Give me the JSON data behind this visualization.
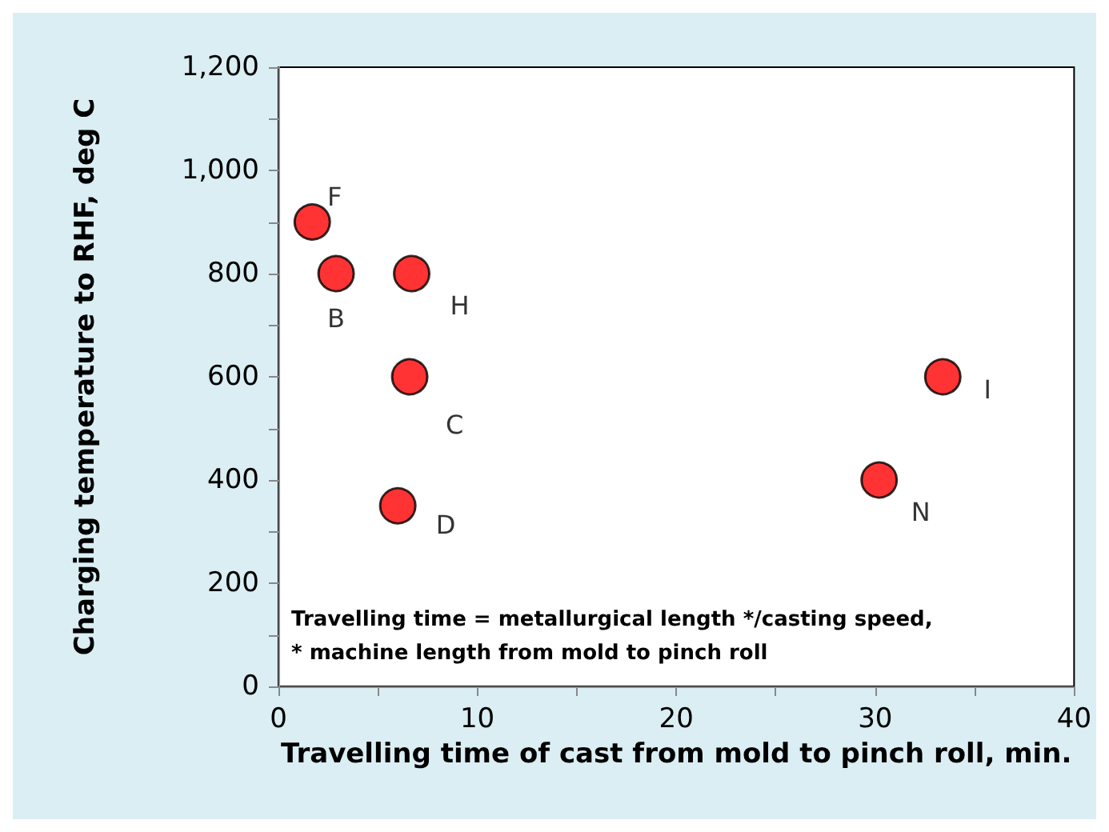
{
  "chart_data": {
    "type": "scatter",
    "xlabel": "Travelling time of cast from mold to pinch roll, min.",
    "ylabel": "Charging temperature to RHF, deg C",
    "x": [
      1.7,
      2.9,
      6.7,
      6.6,
      6.0,
      30.2,
      33.4
    ],
    "values": [
      900,
      800,
      800,
      600,
      350,
      400,
      600
    ],
    "color": "#ff0000",
    "marker": "circle",
    "xlim": [
      0,
      40
    ],
    "xticks": [
      0,
      {
        "value": 5,
        "label": null
      },
      10,
      {
        "value": 15,
        "label": null
      },
      20,
      {
        "value": 25,
        "label": null
      },
      30,
      {
        "value": 35,
        "label": null
      },
      40
    ],
    "ylim": [
      0,
      1200
    ],
    "yticks": [
      0,
      {
        "value": 100,
        "label": null
      },
      200,
      {
        "value": 300,
        "label": null
      },
      400,
      {
        "value": 500,
        "label": null
      },
      600,
      {
        "value": 700,
        "label": null
      },
      800,
      {
        "value": 900,
        "label": null
      },
      {
        "value": 1000,
        "label": "1,000"
      },
      {
        "value": 1100,
        "label": null
      },
      {
        "value": 1200,
        "label": "1,200"
      }
    ],
    "annotations": [
      {
        "text": "F",
        "x": 1.7,
        "y": 900
      },
      {
        "text": "B",
        "x": 2.9,
        "y": 800
      },
      {
        "text": "H",
        "x": 6.7,
        "y": 800
      },
      {
        "text": "C",
        "x": 6.6,
        "y": 600
      },
      {
        "text": "D",
        "x": 6.0,
        "y": 350
      },
      {
        "text": "N",
        "x": 30.2,
        "y": 400
      },
      {
        "text": "I",
        "x": 33.4,
        "y": 600
      },
      "Travelling time = metallurgical length */casting speed,",
      "* machine length from mold to pinch roll"
    ]
  }
}
